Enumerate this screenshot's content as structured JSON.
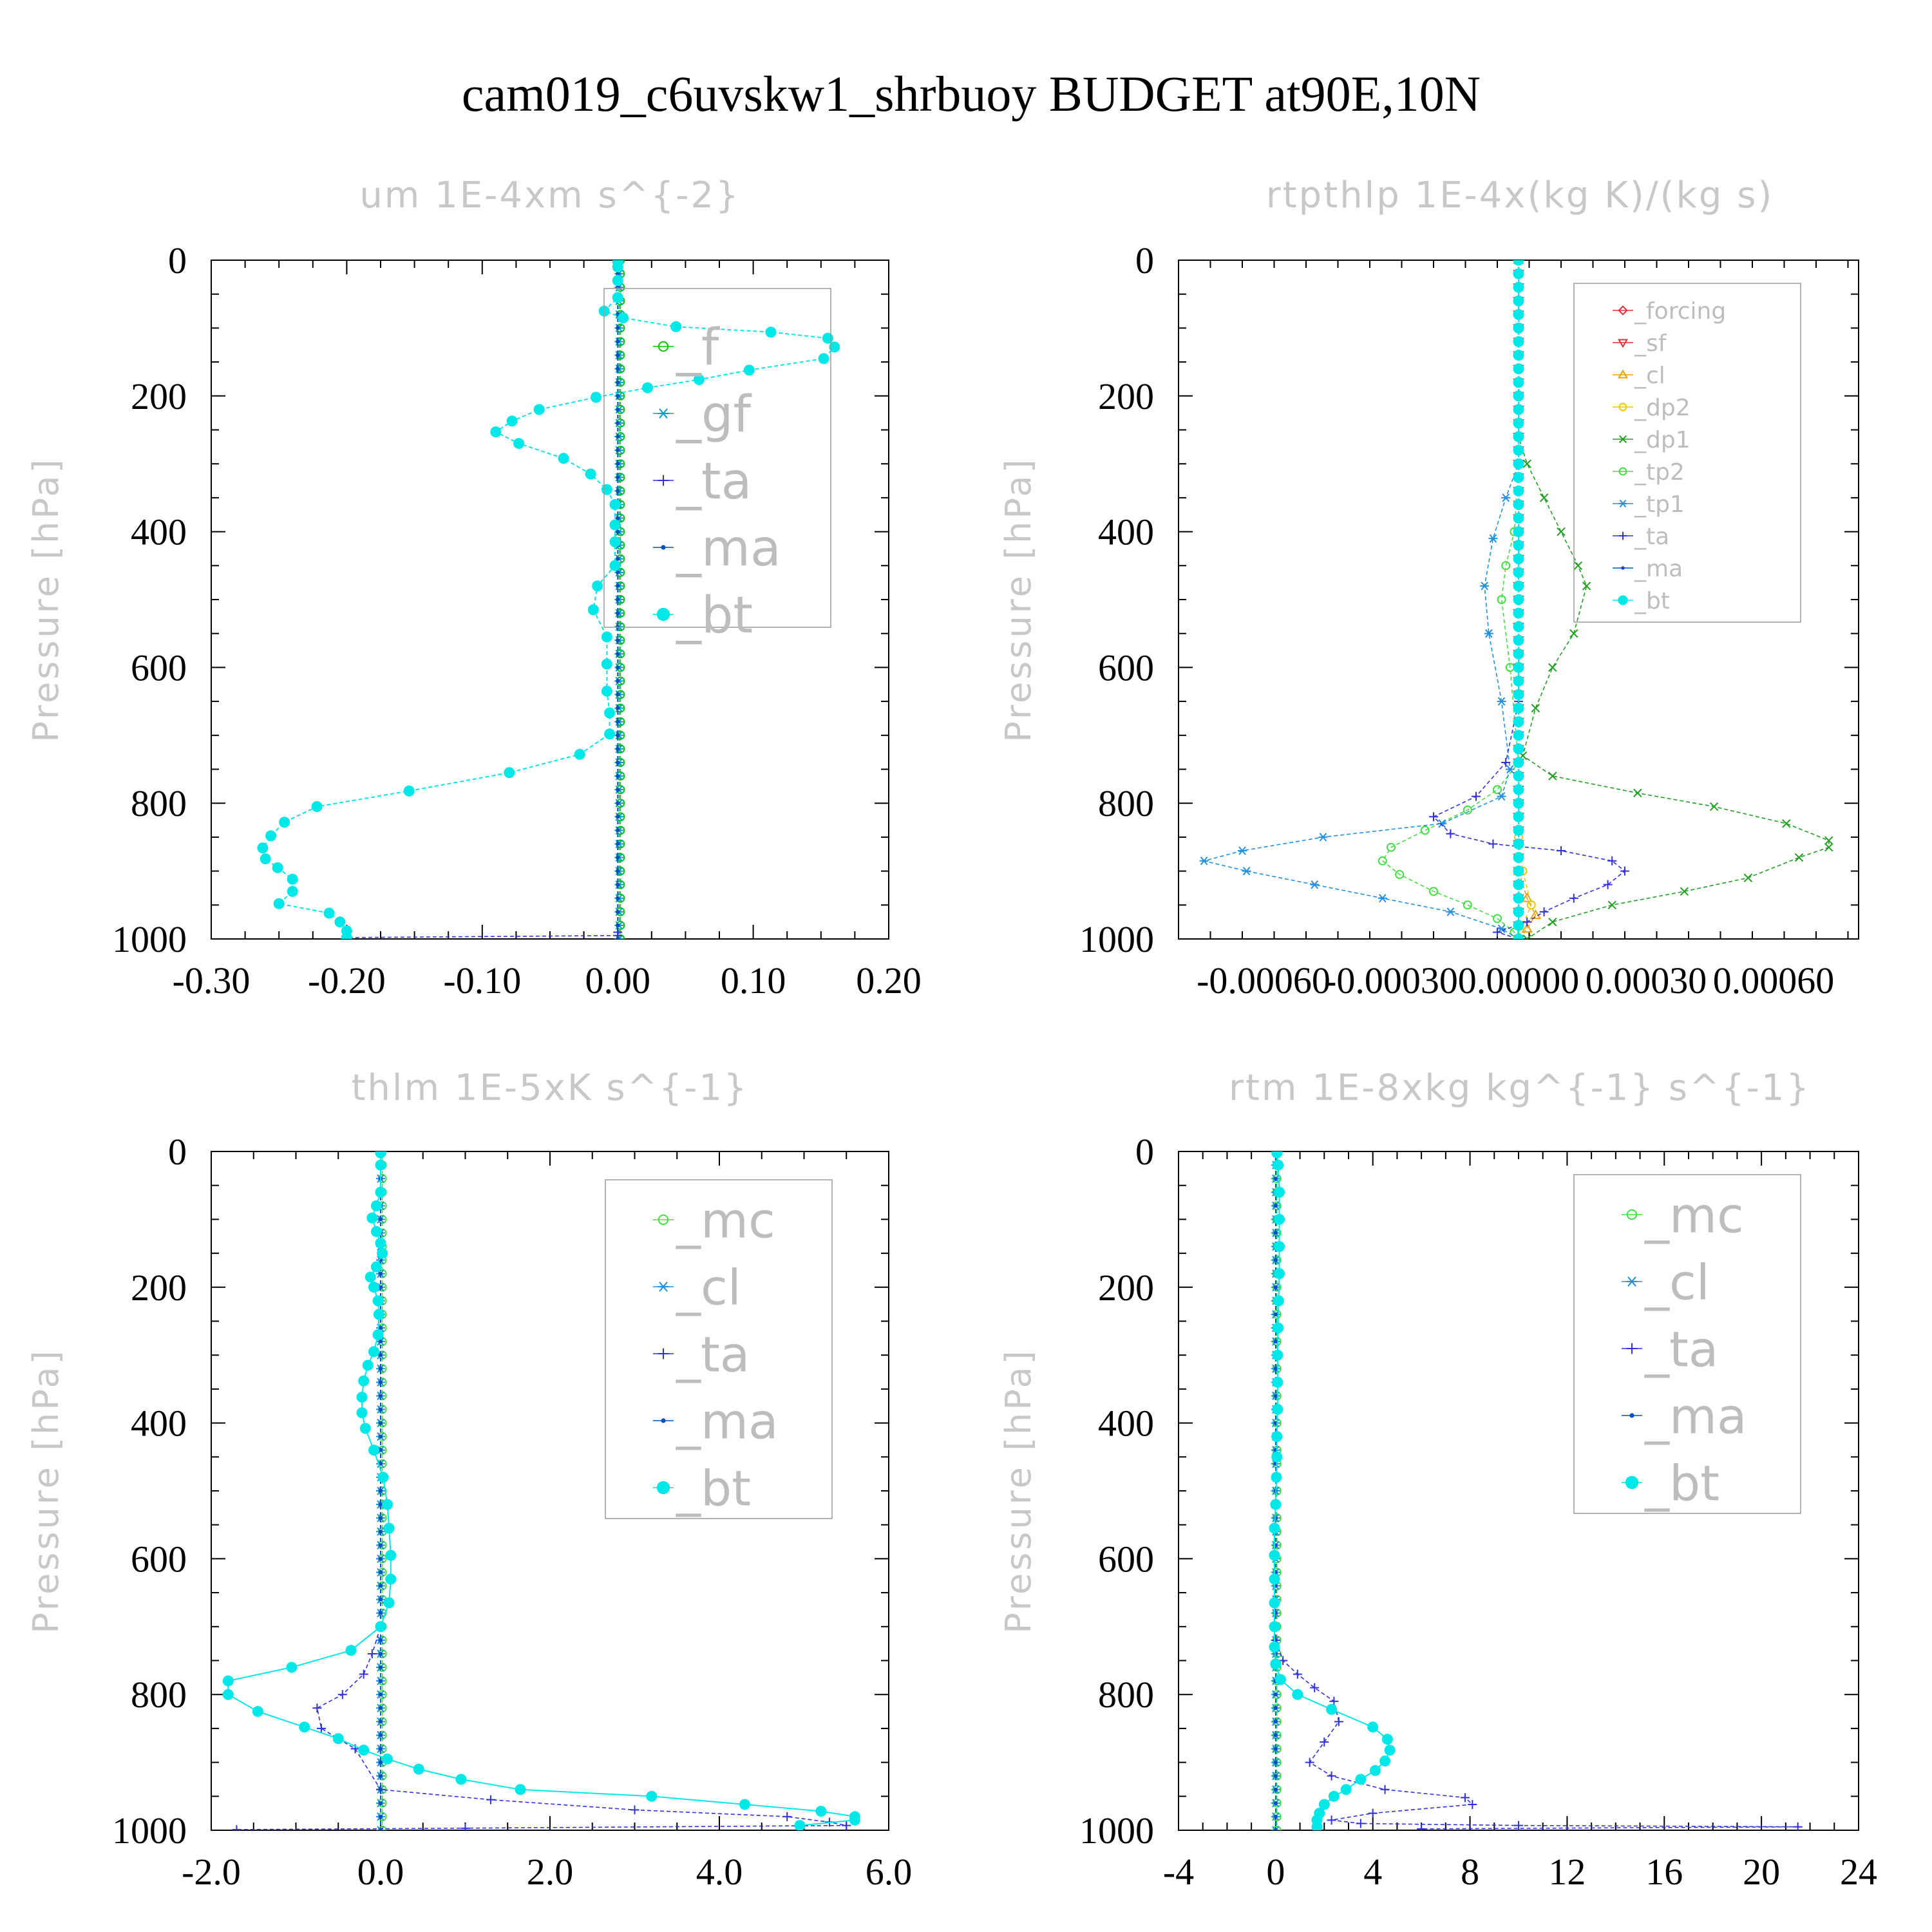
{
  "figure": {
    "title": "cam019_c6uvskw1_shrbuoy  BUDGET at90E,10N"
  },
  "chart_data": [
    {
      "type": "line",
      "title": "um  1E-4xm s^{-2}",
      "ylabel": "Pressure [hPa]",
      "ylim": [
        1000,
        0
      ],
      "xlim": [
        -0.3,
        0.2
      ],
      "xticks": [
        "-0.30",
        "-0.20",
        "-0.10",
        "0.00",
        "0.10",
        "0.20"
      ],
      "yticks": [
        "0",
        "200",
        "400",
        "600",
        "800",
        "1000"
      ],
      "legend": [
        "_f",
        "_gf",
        "_ta",
        "_ma",
        "_bt"
      ],
      "series": [
        {
          "name": "_f",
          "color": "#00c800",
          "marker": "circle-open",
          "x": [
            0.002,
            0.002
          ],
          "y": [
            0,
            1000
          ]
        },
        {
          "name": "_gf",
          "color": "#00a0c8",
          "marker": "star",
          "x": [
            0.001,
            0.001
          ],
          "y": [
            0,
            1000
          ]
        },
        {
          "name": "_ta",
          "color": "#3030e0",
          "marker": "plus",
          "x": [
            0,
            0,
            0,
            -0.2
          ],
          "y": [
            0,
            990,
            995,
            998
          ]
        },
        {
          "name": "_ma",
          "color": "#0050c0",
          "marker": "dot",
          "x": [
            0,
            0
          ],
          "y": [
            0,
            1000
          ]
        },
        {
          "name": "_bt",
          "color": "#00e8e8",
          "marker": "filled-circle",
          "x": [
            0.0,
            0.0,
            0.0,
            0.0,
            -0.01,
            0.004,
            0.043,
            0.113,
            0.155,
            0.16,
            0.152,
            0.097,
            0.06,
            0.022,
            -0.016,
            -0.058,
            -0.078,
            -0.09,
            -0.073,
            -0.04,
            -0.02,
            -0.008,
            -0.002,
            -0.002,
            -0.002,
            -0.002,
            -0.015,
            -0.018,
            -0.008,
            -0.008,
            -0.008,
            -0.006,
            -0.006,
            -0.028,
            -0.08,
            -0.154,
            -0.222,
            -0.246,
            -0.256,
            -0.262,
            -0.26,
            -0.251,
            -0.24,
            -0.24,
            -0.25,
            -0.213,
            -0.205,
            -0.2,
            -0.2
          ],
          "y": [
            2,
            10,
            30,
            55,
            75,
            85,
            98,
            106,
            115,
            128,
            145,
            162,
            176,
            188,
            202,
            220,
            237,
            253,
            270,
            292,
            315,
            338,
            360,
            390,
            415,
            450,
            480,
            515,
            555,
            595,
            635,
            667,
            698,
            728,
            755,
            782,
            805,
            828,
            848,
            866,
            882,
            895,
            912,
            930,
            948,
            962,
            975,
            988,
            998
          ]
        }
      ]
    },
    {
      "type": "line",
      "title": "rtpthlp  1E-4x(kg K)/(kg s)",
      "ylabel": "Pressure [hPa]",
      "ylim": [
        1000,
        0
      ],
      "xlim": [
        -0.0008,
        0.0008
      ],
      "xticks": [
        "-0.00060",
        "-0.00030",
        "0.00000",
        "0.00030",
        "0.00060"
      ],
      "yticks": [
        "0",
        "200",
        "400",
        "600",
        "800",
        "1000"
      ],
      "legend": [
        "_forcing",
        "_sf",
        "_cl",
        "_dp2",
        "_dp1",
        "_tp2",
        "_tp1",
        "_ta",
        "_ma",
        "_bt"
      ],
      "series": [
        {
          "name": "_forcing",
          "color": "#e03030",
          "marker": "diamond",
          "x": [
            0,
            0
          ],
          "y": [
            0,
            1000
          ]
        },
        {
          "name": "_sf",
          "color": "#e03030",
          "marker": "triangle-down",
          "x": [
            0,
            0
          ],
          "y": [
            0,
            1000
          ]
        },
        {
          "name": "_cl",
          "color": "#f0a000",
          "marker": "triangle-up",
          "x": [
            0,
            0,
            2e-05,
            4e-05,
            2e-05,
            0
          ],
          "y": [
            0,
            900,
            940,
            965,
            985,
            1000
          ]
        },
        {
          "name": "_dp2",
          "color": "#e8c800",
          "marker": "circle-open",
          "x": [
            0,
            0,
            1e-05,
            3e-05,
            1e-05,
            0
          ],
          "y": [
            0,
            850,
            900,
            950,
            980,
            1000
          ]
        },
        {
          "name": "_dp1",
          "color": "#20a020",
          "marker": "x",
          "x": [
            0,
            0,
            2e-05,
            6e-05,
            0.0001,
            0.00014,
            0.00016,
            0.00013,
            8e-05,
            4e-05,
            1e-05,
            8e-05,
            0.00028,
            0.00046,
            0.00063,
            0.00073,
            0.00073,
            0.00066,
            0.00054,
            0.00039,
            0.00022,
            8e-05,
            2e-05
          ],
          "y": [
            0,
            260,
            300,
            350,
            400,
            450,
            480,
            550,
            600,
            660,
            730,
            760,
            785,
            805,
            830,
            855,
            865,
            880,
            910,
            930,
            950,
            975,
            1000
          ]
        },
        {
          "name": "_tp2",
          "color": "#40e040",
          "marker": "circle-open",
          "x": [
            0,
            0,
            -1e-05,
            -3e-05,
            -4e-05,
            -2e-05,
            0,
            -5e-05,
            -0.00012,
            -0.00022,
            -0.0003,
            -0.00032,
            -0.00028,
            -0.0002,
            -0.00012,
            -5e-05,
            -1e-05,
            0
          ],
          "y": [
            0,
            300,
            400,
            450,
            500,
            600,
            740,
            780,
            810,
            840,
            865,
            885,
            905,
            930,
            950,
            970,
            990,
            1000
          ]
        },
        {
          "name": "_tp1",
          "color": "#2090e0",
          "marker": "star",
          "x": [
            0,
            0,
            -3e-05,
            -6e-05,
            -8e-05,
            -7e-05,
            -4e-05,
            -2e-05,
            -4e-05,
            -0.00018,
            -0.00046,
            -0.00065,
            -0.00074,
            -0.00064,
            -0.00048,
            -0.00032,
            -0.00016,
            -4e-05,
            0
          ],
          "y": [
            0,
            300,
            350,
            410,
            480,
            550,
            650,
            750,
            790,
            830,
            850,
            870,
            885,
            900,
            920,
            940,
            960,
            985,
            1000
          ]
        },
        {
          "name": "_ta",
          "color": "#3030e0",
          "marker": "plus",
          "x": [
            0,
            0,
            -3e-05,
            -0.0001,
            -0.0002,
            -0.00016,
            -6e-05,
            0.0001,
            0.00022,
            0.00025,
            0.00021,
            0.00013,
            6e-05,
            2e-05,
            -5e-05,
            0
          ],
          "y": [
            0,
            650,
            740,
            790,
            820,
            845,
            860,
            870,
            885,
            900,
            920,
            940,
            960,
            975,
            990,
            1000
          ]
        },
        {
          "name": "_ma",
          "color": "#0050c0",
          "marker": "dot",
          "x": [
            0,
            0
          ],
          "y": [
            0,
            1000
          ]
        },
        {
          "name": "_bt",
          "color": "#00e8e8",
          "marker": "filled-circle",
          "x": [
            0,
            0
          ],
          "y": [
            0,
            1000
          ]
        }
      ]
    },
    {
      "type": "line",
      "title": "thlm  1E-5xK s^{-1}",
      "ylabel": "Pressure [hPa]",
      "ylim": [
        1000,
        0
      ],
      "xlim": [
        -2.0,
        6.0
      ],
      "xticks": [
        "-2.0",
        "0.0",
        "2.0",
        "4.0",
        "6.0"
      ],
      "yticks": [
        "0",
        "200",
        "400",
        "600",
        "800",
        "1000"
      ],
      "legend": [
        "_mc",
        "_cl",
        "_ta",
        "_ma",
        "_bt"
      ],
      "series": [
        {
          "name": "_mc",
          "color": "#40e040",
          "marker": "circle-open",
          "x": [
            0.02,
            0.02
          ],
          "y": [
            0,
            1000
          ]
        },
        {
          "name": "_cl",
          "color": "#2090e0",
          "marker": "star",
          "x": [
            0,
            0
          ],
          "y": [
            0,
            1000
          ]
        },
        {
          "name": "_ta",
          "color": "#3030e0",
          "marker": "plus",
          "x": [
            0,
            0,
            -0.1,
            -0.2,
            -0.45,
            -0.75,
            -0.7,
            -0.3,
            0.0,
            1.3,
            3.0,
            4.8,
            5.3,
            5.5,
            1.0,
            -1.7
          ],
          "y": [
            0,
            700,
            740,
            770,
            800,
            820,
            850,
            880,
            940,
            955,
            970,
            980,
            988,
            993,
            997,
            999
          ]
        },
        {
          "name": "_ma",
          "color": "#0050c0",
          "marker": "dot",
          "x": [
            0,
            0
          ],
          "y": [
            0,
            1000
          ]
        },
        {
          "name": "_bt",
          "color": "#00e8e8",
          "marker": "filled-circle",
          "x": [
            0.0,
            0.0,
            0.0,
            -0.05,
            -0.1,
            -0.05,
            0.0,
            0.02,
            -0.05,
            -0.12,
            -0.08,
            -0.03,
            -0.02,
            -0.03,
            -0.08,
            -0.15,
            -0.2,
            -0.22,
            -0.22,
            -0.18,
            -0.08,
            0.03,
            0.08,
            0.1,
            0.12,
            0.12,
            0.1,
            0.0,
            -0.35,
            -1.05,
            -1.8,
            -1.8,
            -1.45,
            -0.9,
            -0.5,
            -0.2,
            0.08,
            0.45,
            0.95,
            1.65,
            3.2,
            4.3,
            5.2,
            5.6,
            5.6,
            4.95
          ],
          "y": [
            2,
            20,
            60,
            80,
            98,
            118,
            135,
            150,
            170,
            185,
            200,
            220,
            240,
            270,
            295,
            315,
            338,
            362,
            385,
            408,
            440,
            480,
            520,
            555,
            595,
            630,
            665,
            700,
            735,
            760,
            780,
            800,
            825,
            848,
            865,
            882,
            895,
            910,
            925,
            940,
            950,
            962,
            972,
            980,
            985,
            993
          ]
        }
      ]
    },
    {
      "type": "line",
      "title": "rtm  1E-8xkg kg^{-1} s^{-1}",
      "ylabel": "Pressure [hPa]",
      "ylim": [
        1000,
        0
      ],
      "xlim": [
        -4,
        24
      ],
      "xticks": [
        "-4",
        "0",
        "4",
        "8",
        "12",
        "16",
        "20",
        "24"
      ],
      "yticks": [
        "0",
        "200",
        "400",
        "600",
        "800",
        "1000"
      ],
      "legend": [
        "_mc",
        "_cl",
        "_ta",
        "_ma",
        "_bt"
      ],
      "series": [
        {
          "name": "_mc",
          "color": "#40e040",
          "marker": "circle-open",
          "x": [
            0.05,
            0.05
          ],
          "y": [
            0,
            1000
          ]
        },
        {
          "name": "_cl",
          "color": "#2090e0",
          "marker": "star",
          "x": [
            0,
            0
          ],
          "y": [
            0,
            1000
          ]
        },
        {
          "name": "_ta",
          "color": "#3030e0",
          "marker": "plus",
          "x": [
            0,
            0,
            0.3,
            0.9,
            1.6,
            2.4,
            2.6,
            2.0,
            1.4,
            2.3,
            4.5,
            7.8,
            8.1,
            4.0,
            2.3,
            3.5,
            10.0,
            21.5,
            6.0
          ],
          "y": [
            0,
            720,
            750,
            770,
            790,
            810,
            840,
            870,
            900,
            920,
            940,
            952,
            962,
            975,
            985,
            990,
            993,
            995,
            998
          ]
        },
        {
          "name": "_ma",
          "color": "#0050c0",
          "marker": "dot",
          "x": [
            0,
            0
          ],
          "y": [
            0,
            1000
          ]
        },
        {
          "name": "_bt",
          "color": "#00e8e8",
          "marker": "filled-circle",
          "x": [
            0.05,
            0.1,
            0.15,
            0.15,
            0.15,
            0.15,
            0.12,
            0.1,
            0.08,
            0.08,
            0.08,
            0.05,
            0.05,
            0.03,
            0.0,
            -0.05,
            -0.05,
            -0.05,
            -0.05,
            -0.05,
            -0.05,
            0.0,
            0.2,
            0.9,
            2.3,
            4.0,
            4.6,
            4.7,
            4.5,
            4.1,
            3.5,
            2.9,
            2.4,
            2.0,
            1.8,
            1.7,
            1.7
          ],
          "y": [
            2,
            20,
            60,
            100,
            140,
            180,
            220,
            260,
            300,
            340,
            380,
            420,
            450,
            480,
            520,
            555,
            595,
            630,
            665,
            700,
            730,
            755,
            778,
            800,
            822,
            848,
            866,
            882,
            898,
            912,
            925,
            940,
            950,
            962,
            975,
            985,
            995
          ]
        }
      ]
    }
  ]
}
